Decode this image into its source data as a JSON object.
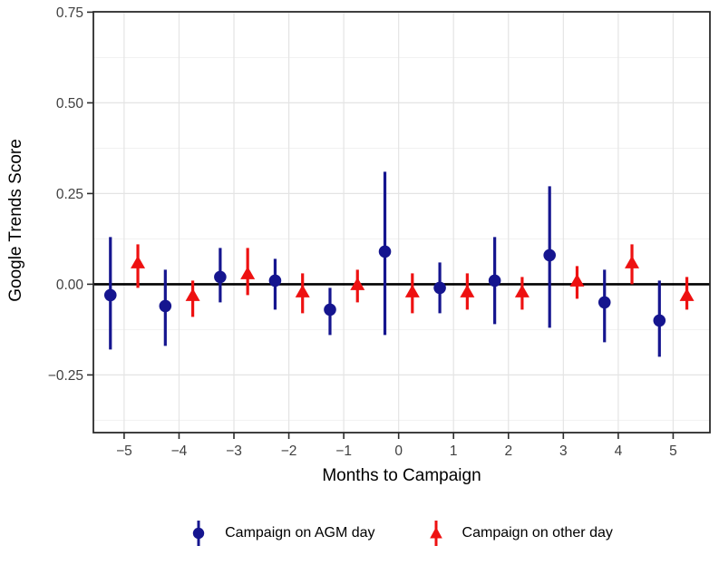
{
  "chart_data": {
    "type": "scatter",
    "subtype": "pointrange",
    "title": "",
    "xlabel": "Months to Campaign",
    "ylabel": "Google Trends Score",
    "xlim": [
      -5.56,
      5.67
    ],
    "ylim": [
      -0.409,
      0.751
    ],
    "x_ticks": [
      -5,
      -4,
      -3,
      -2,
      -1,
      0,
      1,
      2,
      3,
      4,
      5
    ],
    "x_tick_labels": [
      "−5",
      "−4",
      "−3",
      "−2",
      "−1",
      "0",
      "1",
      "2",
      "3",
      "4",
      "5"
    ],
    "y_ticks": [
      -0.25,
      0,
      0.25,
      0.5,
      0.75
    ],
    "y_tick_labels": [
      "−0.25",
      "0.00",
      "0.25",
      "0.50",
      "0.75"
    ],
    "y_minor_gridlines": [
      -0.375,
      -0.125,
      0.125,
      0.375,
      0.625
    ],
    "grid": true,
    "zero_line_y": 0,
    "legend_position": "bottom",
    "series": [
      {
        "name": "Campaign on AGM day",
        "marker": "circle",
        "color": "#15158f",
        "points": [
          {
            "x": -5.25,
            "y": -0.03,
            "lo": -0.18,
            "hi": 0.13
          },
          {
            "x": -4.25,
            "y": -0.06,
            "lo": -0.17,
            "hi": 0.04
          },
          {
            "x": -3.25,
            "y": 0.02,
            "lo": -0.05,
            "hi": 0.1
          },
          {
            "x": -2.25,
            "y": 0.01,
            "lo": -0.07,
            "hi": 0.07
          },
          {
            "x": -1.25,
            "y": -0.07,
            "lo": -0.14,
            "hi": -0.01
          },
          {
            "x": -0.25,
            "y": 0.09,
            "lo": -0.14,
            "hi": 0.31
          },
          {
            "x": 0.75,
            "y": -0.01,
            "lo": -0.08,
            "hi": 0.06
          },
          {
            "x": 1.75,
            "y": 0.01,
            "lo": -0.11,
            "hi": 0.13
          },
          {
            "x": 2.75,
            "y": 0.08,
            "lo": -0.12,
            "hi": 0.27
          },
          {
            "x": 3.75,
            "y": -0.05,
            "lo": -0.16,
            "hi": 0.04
          },
          {
            "x": 4.75,
            "y": -0.1,
            "lo": -0.2,
            "hi": 0.01
          }
        ]
      },
      {
        "name": "Campaign on other day",
        "marker": "triangle",
        "color": "#ee1111",
        "points": [
          {
            "x": -4.75,
            "y": 0.06,
            "lo": -0.01,
            "hi": 0.11
          },
          {
            "x": -3.75,
            "y": -0.03,
            "lo": -0.09,
            "hi": 0.01
          },
          {
            "x": -2.75,
            "y": 0.03,
            "lo": -0.03,
            "hi": 0.1
          },
          {
            "x": -1.75,
            "y": -0.02,
            "lo": -0.08,
            "hi": 0.03
          },
          {
            "x": -0.75,
            "y": 0.0,
            "lo": -0.05,
            "hi": 0.04
          },
          {
            "x": 0.25,
            "y": -0.02,
            "lo": -0.08,
            "hi": 0.03
          },
          {
            "x": 1.25,
            "y": -0.02,
            "lo": -0.07,
            "hi": 0.03
          },
          {
            "x": 2.25,
            "y": -0.02,
            "lo": -0.07,
            "hi": 0.02
          },
          {
            "x": 3.25,
            "y": 0.01,
            "lo": -0.04,
            "hi": 0.05
          },
          {
            "x": 4.25,
            "y": 0.06,
            "lo": 0.0,
            "hi": 0.11
          },
          {
            "x": 5.25,
            "y": -0.03,
            "lo": -0.07,
            "hi": 0.02
          }
        ]
      }
    ],
    "colors": {
      "agm_day": "#15158f",
      "other_day": "#ee1111",
      "grid_major": "#e4e4e4",
      "grid_minor": "#f1f1f1",
      "zero_line": "#000000",
      "panel_border": "#2b2b2b",
      "tick_text": "#404040",
      "axis_title": "#000000",
      "panel_background": "#ffffff"
    }
  }
}
